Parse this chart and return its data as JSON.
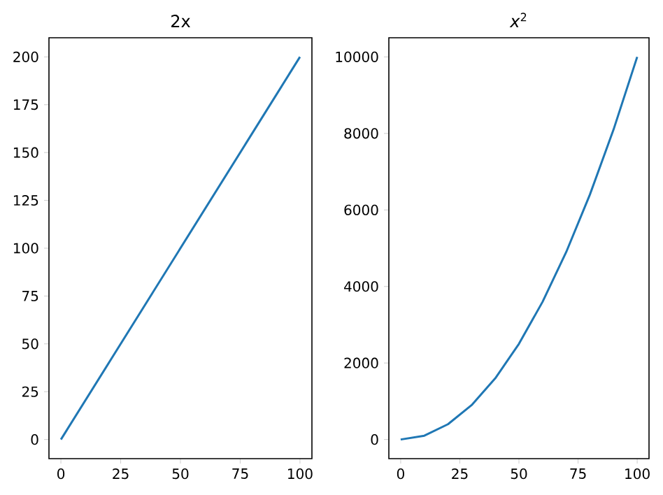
{
  "chart_data": [
    {
      "type": "line",
      "title": "2x",
      "x": [
        0,
        100
      ],
      "values": [
        0,
        200
      ],
      "color": "#1f77b4",
      "xlim": [
        -5,
        105
      ],
      "ylim": [
        -10,
        210
      ],
      "xticks": [
        0,
        25,
        50,
        75,
        100
      ],
      "yticks": [
        0,
        25,
        50,
        75,
        100,
        125,
        150,
        175,
        200
      ]
    },
    {
      "type": "line",
      "title": "*x*$^{2}$",
      "x": [
        0,
        10,
        20,
        30,
        40,
        50,
        60,
        70,
        80,
        90,
        100
      ],
      "values": [
        0,
        100,
        400,
        900,
        1600,
        2500,
        3600,
        4900,
        6400,
        8100,
        10000
      ],
      "color": "#1f77b4",
      "xlim": [
        -5,
        105
      ],
      "ylim": [
        -500,
        10500
      ],
      "xticks": [
        0,
        25,
        50,
        75,
        100
      ],
      "yticks": [
        0,
        2000,
        4000,
        6000,
        8000,
        10000
      ]
    }
  ]
}
